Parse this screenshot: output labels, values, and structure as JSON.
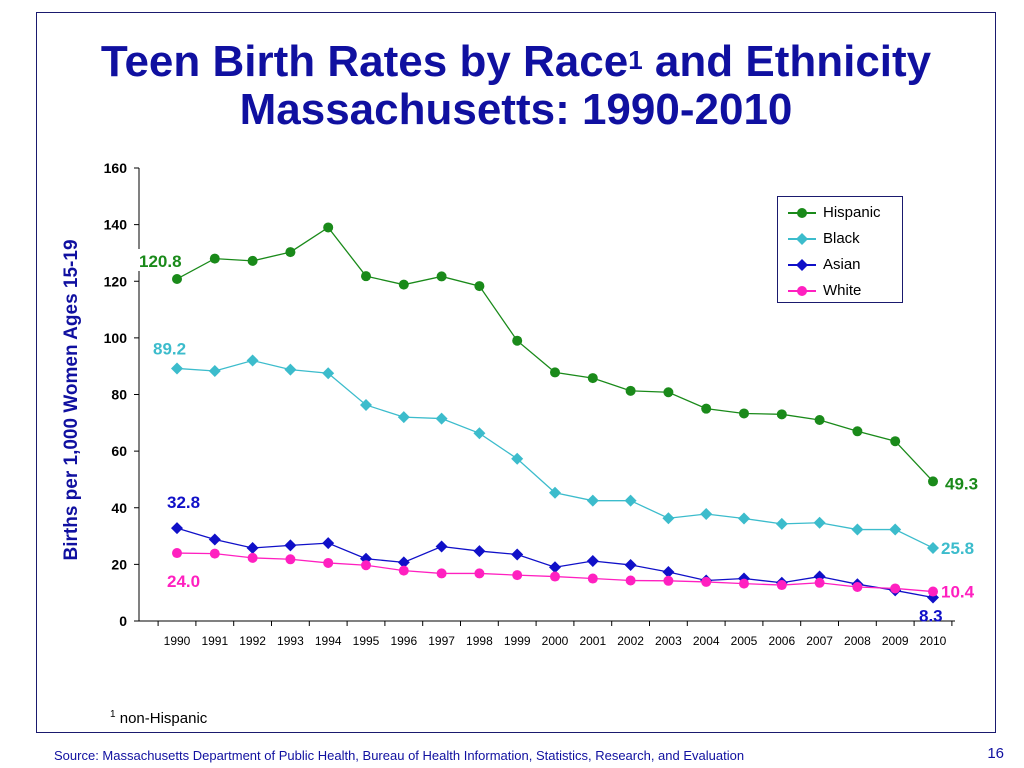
{
  "slide": {
    "title_part1": "Teen Birth Rates by Race",
    "title_sup": "1",
    "title_part2": " and Ethnicity",
    "title_line2": "Massachusetts: 1990-2010",
    "footnote_sup": "1",
    "footnote_text": "non-Hispanic",
    "source": "Source:  Massachusetts Department of Public Health, Bureau of Health Information, Statistics, Research, and Evaluation",
    "page_number": "16"
  },
  "chart_data": {
    "type": "line",
    "title": "Teen Birth Rates by Race1 and Ethnicity Massachusetts: 1990-2010",
    "xlabel": "",
    "ylabel": "Births per 1,000 Women Ages 15-19",
    "ylim": [
      0,
      160
    ],
    "yticks": [
      "0",
      "20",
      "40",
      "60",
      "80",
      "100",
      "120",
      "140",
      "160"
    ],
    "categories": [
      "1990",
      "1991",
      "1992",
      "1993",
      "1994",
      "1995",
      "1996",
      "1997",
      "1998",
      "1999",
      "2000",
      "2001",
      "2002",
      "2003",
      "2004",
      "2005",
      "2006",
      "2007",
      "2008",
      "2009",
      "2010"
    ],
    "legend_position": "top-right",
    "grid": false,
    "series": [
      {
        "name": "Hispanic",
        "color": "#1a8a1a",
        "marker": "circle",
        "values": [
          120.8,
          128.0,
          127.2,
          130.3,
          139.0,
          121.8,
          118.8,
          121.7,
          118.3,
          99.0,
          87.8,
          85.8,
          81.3,
          80.8,
          75.0,
          73.3,
          73.0,
          71.0,
          67.0,
          63.5,
          49.3
        ],
        "start_label": "120.8",
        "end_label": "49.3",
        "label_color": "#1a8a1a"
      },
      {
        "name": "Black",
        "color": "#3cbccc",
        "marker": "diamond",
        "values": [
          89.2,
          88.3,
          92.0,
          88.8,
          87.5,
          76.3,
          72.0,
          71.5,
          66.3,
          57.3,
          45.3,
          42.5,
          42.5,
          36.3,
          37.8,
          36.2,
          34.3,
          34.7,
          32.3,
          32.3,
          25.8
        ],
        "start_label": "89.2",
        "end_label": "25.8",
        "label_color": "#3cbccc"
      },
      {
        "name": "Asian",
        "color": "#1010c8",
        "marker": "diamond",
        "values": [
          32.8,
          28.8,
          25.8,
          26.7,
          27.5,
          22.0,
          20.7,
          26.3,
          24.7,
          23.5,
          19.0,
          21.2,
          19.8,
          17.3,
          14.3,
          15.0,
          13.5,
          15.7,
          13.0,
          10.8,
          8.3
        ],
        "start_label": "32.8",
        "end_label": "8.3",
        "label_color": "#1010c8"
      },
      {
        "name": "White",
        "color": "#ff20c0",
        "marker": "circle",
        "values": [
          24.0,
          23.8,
          22.3,
          21.8,
          20.5,
          19.7,
          17.8,
          16.8,
          16.8,
          16.2,
          15.7,
          15.0,
          14.3,
          14.2,
          13.8,
          13.2,
          12.7,
          13.5,
          12.0,
          11.5,
          10.4
        ],
        "start_label": "24.0",
        "end_label": "10.4",
        "label_color": "#ff20c0"
      }
    ]
  }
}
